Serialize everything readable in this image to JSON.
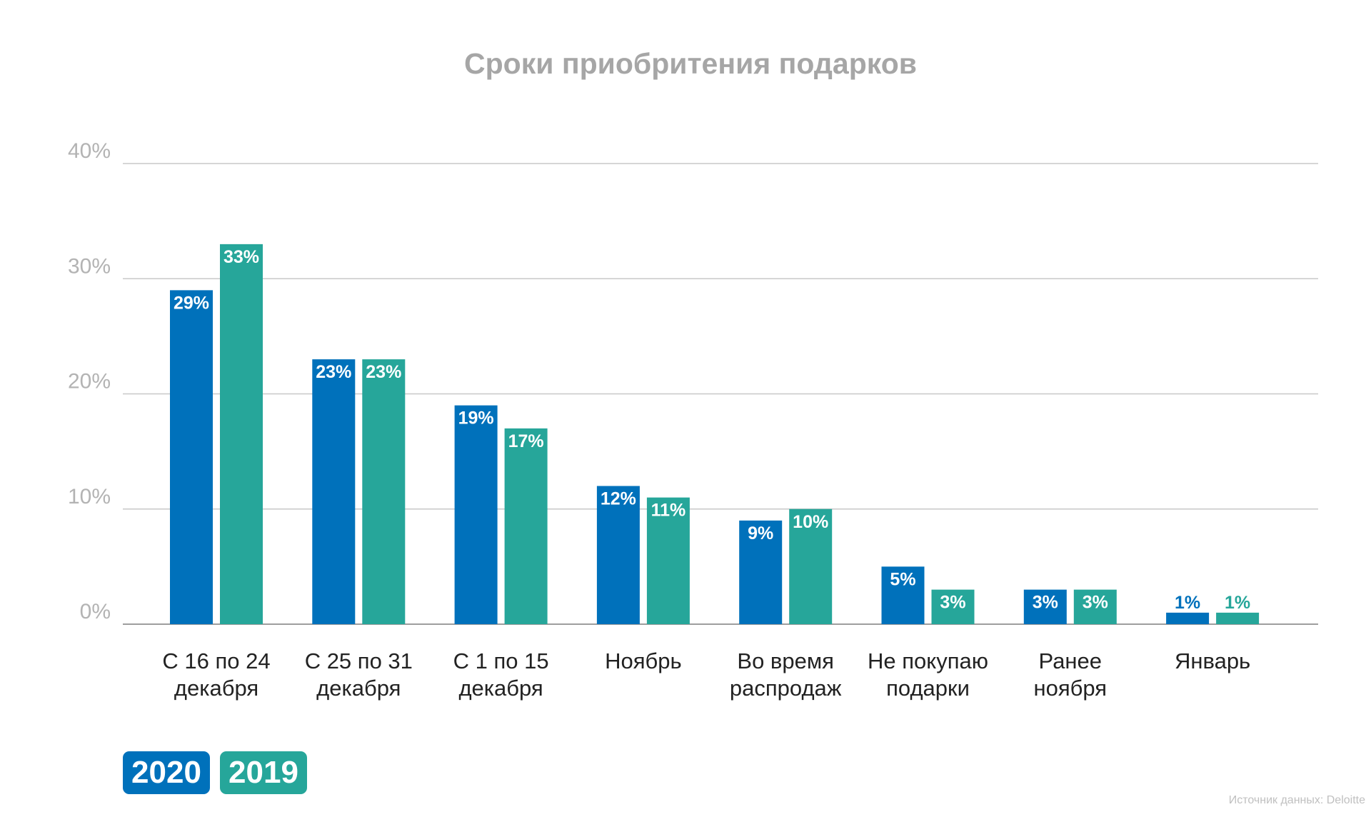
{
  "chart_data": {
    "type": "bar",
    "title": "Сроки приобритения подарков",
    "categories": [
      [
        "С 16 по 24",
        "декабря"
      ],
      [
        "С 25 по 31",
        "декабря"
      ],
      [
        "С 1 по 15",
        "декабря"
      ],
      [
        "Ноябрь"
      ],
      [
        "Во время",
        "распродаж"
      ],
      [
        "Не покупаю",
        "подарки"
      ],
      [
        "Ранее",
        "ноября"
      ],
      [
        "Январь"
      ]
    ],
    "series": [
      {
        "name": "2020",
        "color": "#0071bb",
        "values": [
          29,
          23,
          19,
          12,
          9,
          5,
          3,
          1
        ],
        "labels": [
          "29%",
          "23%",
          "19%",
          "12%",
          "9%",
          "5%",
          "3%",
          "1%"
        ]
      },
      {
        "name": "2019",
        "color": "#26a69a",
        "values": [
          33,
          23,
          17,
          11,
          10,
          3,
          3,
          1
        ],
        "labels": [
          "33%",
          "23%",
          "17%",
          "11%",
          "10%",
          "3%",
          "3%",
          "1%"
        ]
      }
    ],
    "ylim": [
      0,
      40
    ],
    "yticks": [
      0,
      10,
      20,
      30,
      40
    ],
    "ytick_labels": [
      "0%",
      "10%",
      "20%",
      "30%",
      "40%"
    ],
    "grid": true,
    "legend_position": "bottom-left"
  },
  "source_note": "Источник данных: Deloitte"
}
